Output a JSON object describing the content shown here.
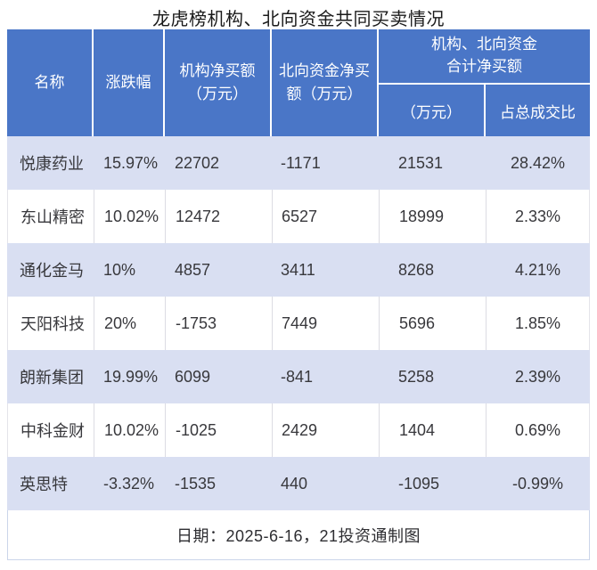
{
  "title": "龙虎榜机构、北向资金共同买卖情况",
  "colors": {
    "header_bg": "#4A76C7",
    "band_row_bg": "#D9DFF2",
    "plain_row_bg": "#FFFFFF",
    "header_text": "#FFFFFF",
    "data_text": "#38383C",
    "grid_line": "#DCDCE3",
    "footer_border": "#CBD5EA"
  },
  "header": {
    "name": "名称",
    "change": "涨跌幅",
    "inst_net_line1": "机构净买额",
    "inst_net_line2": "（万元）",
    "north_net_line1": "北向资金净买",
    "north_net_line2": "额（万元）",
    "combined_line1": "机构、北向资金",
    "combined_line2": "合计净买额",
    "combined_sub_amount": "（万元）",
    "combined_sub_ratio": "占总成交比"
  },
  "rows": [
    {
      "name": "悦康药业",
      "change": "15.97%",
      "inst": "22702",
      "north": "-1171",
      "total": "21531",
      "ratio": "28.42%"
    },
    {
      "name": "东山精密",
      "change": "10.02%",
      "inst": "12472",
      "north": "6527",
      "total": "18999",
      "ratio": "2.33%"
    },
    {
      "name": "通化金马",
      "change": "10%",
      "inst": "4857",
      "north": "3411",
      "total": "8268",
      "ratio": "4.21%"
    },
    {
      "name": "天阳科技",
      "change": "20%",
      "inst": "-1753",
      "north": "7449",
      "total": "5696",
      "ratio": "1.85%"
    },
    {
      "name": "朗新集团",
      "change": "19.99%",
      "inst": "6099",
      "north": "-841",
      "total": "5258",
      "ratio": "2.39%"
    },
    {
      "name": "中科金财",
      "change": "10.02%",
      "inst": "-1025",
      "north": "2429",
      "total": "1404",
      "ratio": "0.69%"
    },
    {
      "name": "英思特",
      "change": "-3.32%",
      "inst": "-1535",
      "north": "440",
      "total": "-1095",
      "ratio": "-0.99%"
    }
  ],
  "footer_note": "日期：2025-6-16，21投资通制图",
  "chart_data": {
    "type": "table",
    "title": "龙虎榜机构、北向资金共同买卖情况",
    "columns": [
      "名称",
      "涨跌幅",
      "机构净买额（万元）",
      "北向资金净买额（万元）",
      "机构、北向资金合计净买额（万元）",
      "机构、北向资金合计净买额占总成交比"
    ],
    "rows": [
      [
        "悦康药业",
        "15.97%",
        22702,
        -1171,
        21531,
        "28.42%"
      ],
      [
        "东山精密",
        "10.02%",
        12472,
        6527,
        18999,
        "2.33%"
      ],
      [
        "通化金马",
        "10%",
        4857,
        3411,
        8268,
        "4.21%"
      ],
      [
        "天阳科技",
        "20%",
        -1753,
        7449,
        5696,
        "1.85%"
      ],
      [
        "朗新集团",
        "19.99%",
        6099,
        -841,
        5258,
        "2.39%"
      ],
      [
        "中科金财",
        "10.02%",
        -1025,
        2429,
        1404,
        "0.69%"
      ],
      [
        "英思特",
        "-3.32%",
        -1535,
        440,
        -1095,
        "-0.99%"
      ]
    ],
    "note": "日期：2025-6-16，21投资通制图"
  }
}
